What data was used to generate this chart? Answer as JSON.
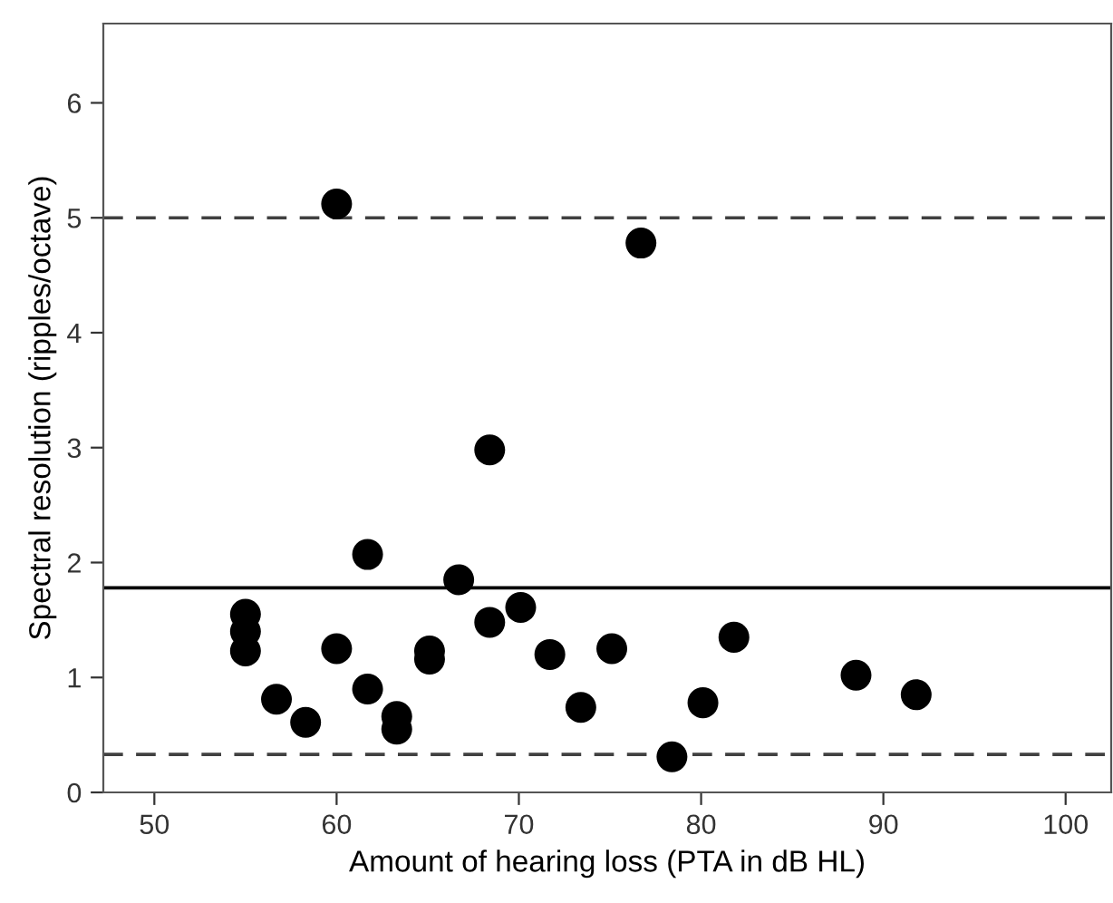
{
  "chart_data": {
    "type": "scatter",
    "xlabel": "Amount of hearing loss (PTA in dB HL)",
    "ylabel": "Spectral resolution (ripples/octave)",
    "x": [
      55.0,
      55.0,
      55.0,
      56.7,
      58.3,
      60.0,
      61.7,
      61.7,
      63.3,
      63.3,
      65.1,
      65.1,
      66.7,
      68.4,
      70.1,
      71.7,
      73.4,
      75.1,
      78.4,
      80.1,
      81.8,
      88.5,
      91.8,
      60.0,
      76.7,
      68.4
    ],
    "series": [
      {
        "color": "#000000",
        "values": [
          1.55,
          1.4,
          1.23,
          0.81,
          0.61,
          1.25,
          2.07,
          0.9,
          0.66,
          0.55,
          1.23,
          1.16,
          1.85,
          1.48,
          1.61,
          1.2,
          0.74,
          1.25,
          0.31,
          0.78,
          1.35,
          1.02,
          0.85,
          5.12,
          4.78,
          2.98
        ]
      }
    ],
    "marker": "circle",
    "xlim": [
      47.2,
      102.5
    ],
    "xticks": [
      50,
      60,
      70,
      80,
      90,
      100
    ],
    "ylim": [
      0,
      6.69
    ],
    "yticks": [
      0,
      1,
      2,
      3,
      4,
      5,
      6
    ],
    "ref_lines": [
      {
        "axis": "y",
        "value": 5.0,
        "line_style": "dashed",
        "color": "#404040"
      },
      {
        "axis": "y",
        "value": 1.78,
        "line_style": "solid",
        "color": "#000000"
      },
      {
        "axis": "y",
        "value": 0.33,
        "line_style": "dashed",
        "color": "#404040"
      }
    ],
    "grid": false,
    "legend": false
  }
}
